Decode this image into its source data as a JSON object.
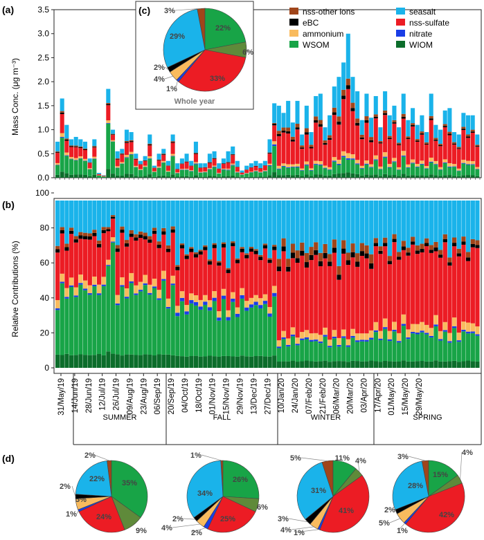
{
  "colors": {
    "nss_other": "#a0451a",
    "ebc": "#000000",
    "ammonium": "#f9bb5e",
    "wsom": "#18a447",
    "seasalt": "#1ab3ea",
    "nss_sulfate": "#ec1c24",
    "nitrate": "#1a3de6",
    "wiom": "#0c6d2b",
    "olive_slice": "#5f8a3a"
  },
  "panel_labels": {
    "a": "(a)",
    "b": "(b)",
    "c": "(c)",
    "d": "(d)"
  },
  "chart_data": [
    {
      "id": "a",
      "type": "bar",
      "stacked": true,
      "ylabel": "Mass Conc. (μg m⁻³)",
      "ylim": [
        0,
        3.5
      ],
      "yticks": [
        "0.0",
        "0.5",
        "1.0",
        "1.5",
        "2.0",
        "2.5",
        "3.0",
        "3.5"
      ],
      "series_order": [
        "wiom",
        "wsom",
        "nitrate",
        "ammonium",
        "nss_sulfate",
        "ebc",
        "nss_other",
        "seasalt"
      ],
      "legend": [
        {
          "key": "nss_other",
          "label": "nss-other ions"
        },
        {
          "key": "seasalt",
          "label": "seasalt"
        },
        {
          "key": "ebc",
          "label": "eBC"
        },
        {
          "key": "nss_sulfate",
          "label": "nss-sulfate"
        },
        {
          "key": "ammonium",
          "label": "ammonium"
        },
        {
          "key": "nitrate",
          "label": "nitrate"
        },
        {
          "key": "wsom",
          "label": "WSOM"
        },
        {
          "key": "wiom",
          "label": "WIOM"
        }
      ],
      "totals": [
        0.75,
        1.65,
        1.1,
        0.8,
        0.85,
        0.8,
        0.75,
        0.4,
        0.8,
        0.1,
        0.05,
        1.85,
        1.0,
        0.55,
        0.6,
        1.0,
        0.95,
        0.5,
        0.35,
        0.45,
        0.9,
        0.25,
        0.5,
        0.6,
        0.35,
        0.9,
        0.3,
        0.4,
        0.5,
        0.35,
        0.75,
        0.3,
        0.3,
        0.5,
        0.55,
        0.3,
        0.4,
        0.55,
        0.65,
        0.35,
        0.15,
        0.25,
        0.3,
        0.35,
        0.3,
        0.35,
        0.8,
        1.55,
        1.5,
        1.35,
        1.6,
        1.15,
        1.6,
        0.9,
        1.5,
        0.95,
        1.7,
        1.75,
        1.05,
        1.3,
        1.9,
        2.1,
        2.4,
        3.0,
        2.1,
        1.8,
        1.2,
        1.75,
        1.25,
        1.7,
        1.05,
        1.8,
        1.3,
        1.5,
        1.05,
        1.75,
        1.2,
        1.45,
        1.1,
        1.3,
        0.95,
        1.75,
        1.1,
        1.0,
        1.4,
        1.45,
        0.95,
        0.9,
        1.35,
        1.3,
        1.3,
        0.9
      ],
      "title": ""
    },
    {
      "id": "b",
      "type": "bar",
      "stacked": true,
      "percent": true,
      "ylabel": "Relative Contributions (%)",
      "ylim": [
        0,
        100
      ],
      "yticks": [
        "0",
        "20",
        "40",
        "60",
        "80",
        "100"
      ],
      "date_labels": [
        "31/May/19",
        "14/Jun/19",
        "28/Jun/19",
        "12/Jul/19",
        "26/Jul/19",
        "09/Aug/19",
        "23/Aug/19",
        "06/Sep/19",
        "20/Sep/19",
        "04/Oct/19",
        "18/Oct/19",
        "01/Nov/19",
        "15/Nov/19",
        "29/Nov/19",
        "13/Dec/19",
        "27/Dec/19",
        "10/Jan/20",
        "24/Jan/20",
        "07/Feb/20",
        "21/Feb/20",
        "06/Mar/20",
        "20/Mar/20",
        "03/Apr/20",
        "17/Apr/20",
        "01/May/20",
        "15/May/20",
        "29/May/20"
      ],
      "seasons": [
        "SUMMER",
        "FALL",
        "WINTER",
        "SPRING"
      ],
      "title": ""
    },
    {
      "id": "c",
      "type": "pie",
      "title": "Whole year",
      "slices": [
        {
          "key": "nss_other",
          "value": 3,
          "label": "3%"
        },
        {
          "key": "wsom",
          "value": 22,
          "label": "22%"
        },
        {
          "key": "wiom",
          "value": 6,
          "label": "6%"
        },
        {
          "key": "nss_sulfate",
          "value": 33,
          "label": "33%"
        },
        {
          "key": "nitrate",
          "value": 1,
          "label": "1%"
        },
        {
          "key": "ammonium",
          "value": 4,
          "label": "4%"
        },
        {
          "key": "ebc",
          "value": 2,
          "label": "2%"
        },
        {
          "key": "seasalt",
          "value": 29,
          "label": "29%"
        }
      ]
    },
    {
      "id": "d-summer",
      "type": "pie",
      "title": "",
      "slices": [
        {
          "key": "nss_other",
          "value": 2,
          "label": "2%"
        },
        {
          "key": "wsom",
          "value": 35,
          "label": "35%"
        },
        {
          "key": "wiom",
          "value": 9,
          "label": "9%"
        },
        {
          "key": "nss_sulfate",
          "value": 24,
          "label": "24%"
        },
        {
          "key": "nitrate",
          "value": 1,
          "label": "1%"
        },
        {
          "key": "ammonium",
          "value": 5,
          "label": "5%"
        },
        {
          "key": "ebc",
          "value": 2,
          "label": "2%"
        },
        {
          "key": "seasalt",
          "value": 22,
          "label": "22%"
        }
      ]
    },
    {
      "id": "d-fall",
      "type": "pie",
      "title": "",
      "slices": [
        {
          "key": "nss_other",
          "value": 1,
          "label": "1%"
        },
        {
          "key": "wsom",
          "value": 26,
          "label": "26%"
        },
        {
          "key": "wiom",
          "value": 6,
          "label": "6%"
        },
        {
          "key": "nss_sulfate",
          "value": 25,
          "label": "25%"
        },
        {
          "key": "nitrate",
          "value": 2,
          "label": "2%"
        },
        {
          "key": "ammonium",
          "value": 4,
          "label": "4%"
        },
        {
          "key": "ebc",
          "value": 2,
          "label": "2%"
        },
        {
          "key": "seasalt",
          "value": 34,
          "label": "34%"
        }
      ]
    },
    {
      "id": "d-winter",
      "type": "pie",
      "title": "",
      "slices": [
        {
          "key": "nss_other",
          "value": 5,
          "label": "5%"
        },
        {
          "key": "wsom",
          "value": 11,
          "label": "11%"
        },
        {
          "key": "wiom",
          "value": 4,
          "label": "4%"
        },
        {
          "key": "nss_sulfate",
          "value": 41,
          "label": "41%"
        },
        {
          "key": "nitrate",
          "value": 1,
          "label": "1%"
        },
        {
          "key": "ammonium",
          "value": 4,
          "label": "4%"
        },
        {
          "key": "ebc",
          "value": 3,
          "label": "3%"
        },
        {
          "key": "seasalt",
          "value": 31,
          "label": "31%"
        }
      ]
    },
    {
      "id": "d-spring",
      "type": "pie",
      "title": "",
      "slices": [
        {
          "key": "nss_other",
          "value": 3,
          "label": "3%"
        },
        {
          "key": "wsom",
          "value": 15,
          "label": "15%"
        },
        {
          "key": "wiom",
          "value": 4,
          "label": "4%"
        },
        {
          "key": "nss_sulfate",
          "value": 42,
          "label": "42%"
        },
        {
          "key": "nitrate",
          "value": 1,
          "label": "1%"
        },
        {
          "key": "ammonium",
          "value": 5,
          "label": "5%"
        },
        {
          "key": "ebc",
          "value": 2,
          "label": "2%"
        },
        {
          "key": "seasalt",
          "value": 28,
          "label": "28%"
        }
      ]
    }
  ]
}
